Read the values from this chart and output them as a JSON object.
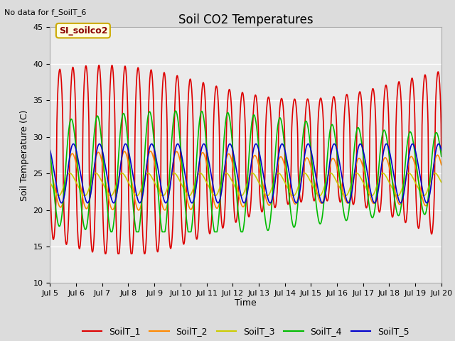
{
  "title": "Soil CO2 Temperatures",
  "ylabel": "Soil Temperature (C)",
  "xlabel": "Time",
  "no_data_text": "No data for f_SoilT_6",
  "annotation_text": "SI_soilco2",
  "ylim": [
    10,
    45
  ],
  "xlim": [
    0,
    360
  ],
  "x_tick_labels": [
    "Jul 5",
    "Jul 6",
    "Jul 7",
    "Jul 8",
    "Jul 9",
    "Jul 10",
    "Jul 11",
    "Jul 12",
    "Jul 13",
    "Jul 14",
    "Jul 15",
    "Jul 16",
    "Jul 17",
    "Jul 18",
    "Jul 19",
    "Jul 20"
  ],
  "background_color": "#dcdcdc",
  "plot_bg_color": "#ebebeb",
  "legend_labels": [
    "SoilT_1",
    "SoilT_2",
    "SoilT_3",
    "SoilT_4",
    "SoilT_5"
  ],
  "legend_colors": [
    "#dd0000",
    "#ff8800",
    "#cccc00",
    "#00bb00",
    "#0000cc"
  ]
}
